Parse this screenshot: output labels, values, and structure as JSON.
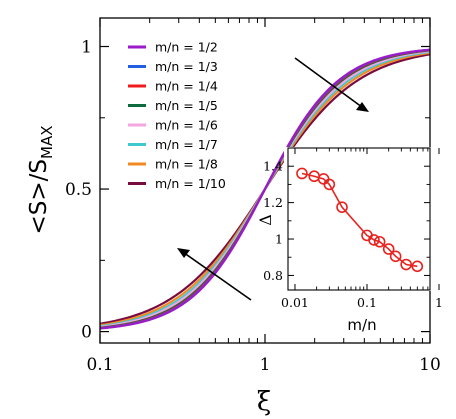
{
  "chart_data": [
    {
      "type": "line",
      "ylabel": "<S>/S",
      "ylabel_sub": "MAX",
      "xlabel": "ξ",
      "xscale": "log",
      "xlim": [
        0.1,
        10
      ],
      "ylim": [
        -0.04,
        1.1
      ],
      "x_tick_labels": [
        "0.1",
        "1",
        "10"
      ],
      "x_ticks": [
        0.1,
        1,
        10
      ],
      "y_tick_labels": [
        "0",
        "0.5",
        "1"
      ],
      "y_ticks": [
        0,
        0.5,
        1
      ],
      "legend_position": "top-left",
      "series": [
        {
          "name": "m/n = 1/2",
          "color": "#9b1bc9",
          "x0": 1.0,
          "slope": 1.95
        },
        {
          "name": "m/n = 1/3",
          "color": "#1f5fe0",
          "x0": 1.0,
          "slope": 1.93
        },
        {
          "name": "m/n = 1/4",
          "color": "#ee1c1c",
          "x0": 1.0,
          "slope": 1.9
        },
        {
          "name": "m/n = 1/5",
          "color": "#0b6b3c",
          "x0": 1.0,
          "slope": 1.86
        },
        {
          "name": "m/n = 1/6",
          "color": "#f4a6e2",
          "x0": 1.0,
          "slope": 1.78
        },
        {
          "name": "m/n = 1/7",
          "color": "#3ec9cf",
          "x0": 1.0,
          "slope": 1.72
        },
        {
          "name": "m/n = 1/8",
          "color": "#f08a24",
          "x0": 1.0,
          "slope": 1.64
        },
        {
          "name": "m/n = 1/10",
          "color": "#7a0b3f",
          "x0": 1.0,
          "slope": 1.55
        }
      ]
    },
    {
      "type": "line",
      "xlabel": "m/n",
      "ylabel": "Δ",
      "xscale": "log",
      "xlim": [
        0.008,
        0.75
      ],
      "ylim": [
        0.72,
        1.5
      ],
      "x_tick_labels": [
        "0.01",
        "0.1",
        "1"
      ],
      "x_ticks": [
        0.01,
        0.1,
        1
      ],
      "y_tick_labels": [
        "0.8",
        "1",
        "1.2",
        "1.4"
      ],
      "y_ticks": [
        0.8,
        1.0,
        1.2,
        1.4
      ],
      "color": "#e8231f",
      "x": [
        0.0125,
        0.0185,
        0.025,
        0.03,
        0.045,
        0.1,
        0.125,
        0.15,
        0.2,
        0.25,
        0.35,
        0.5
      ],
      "y": [
        1.36,
        1.345,
        1.33,
        1.3,
        1.175,
        1.02,
        0.995,
        0.985,
        0.945,
        0.905,
        0.86,
        0.85
      ]
    }
  ]
}
